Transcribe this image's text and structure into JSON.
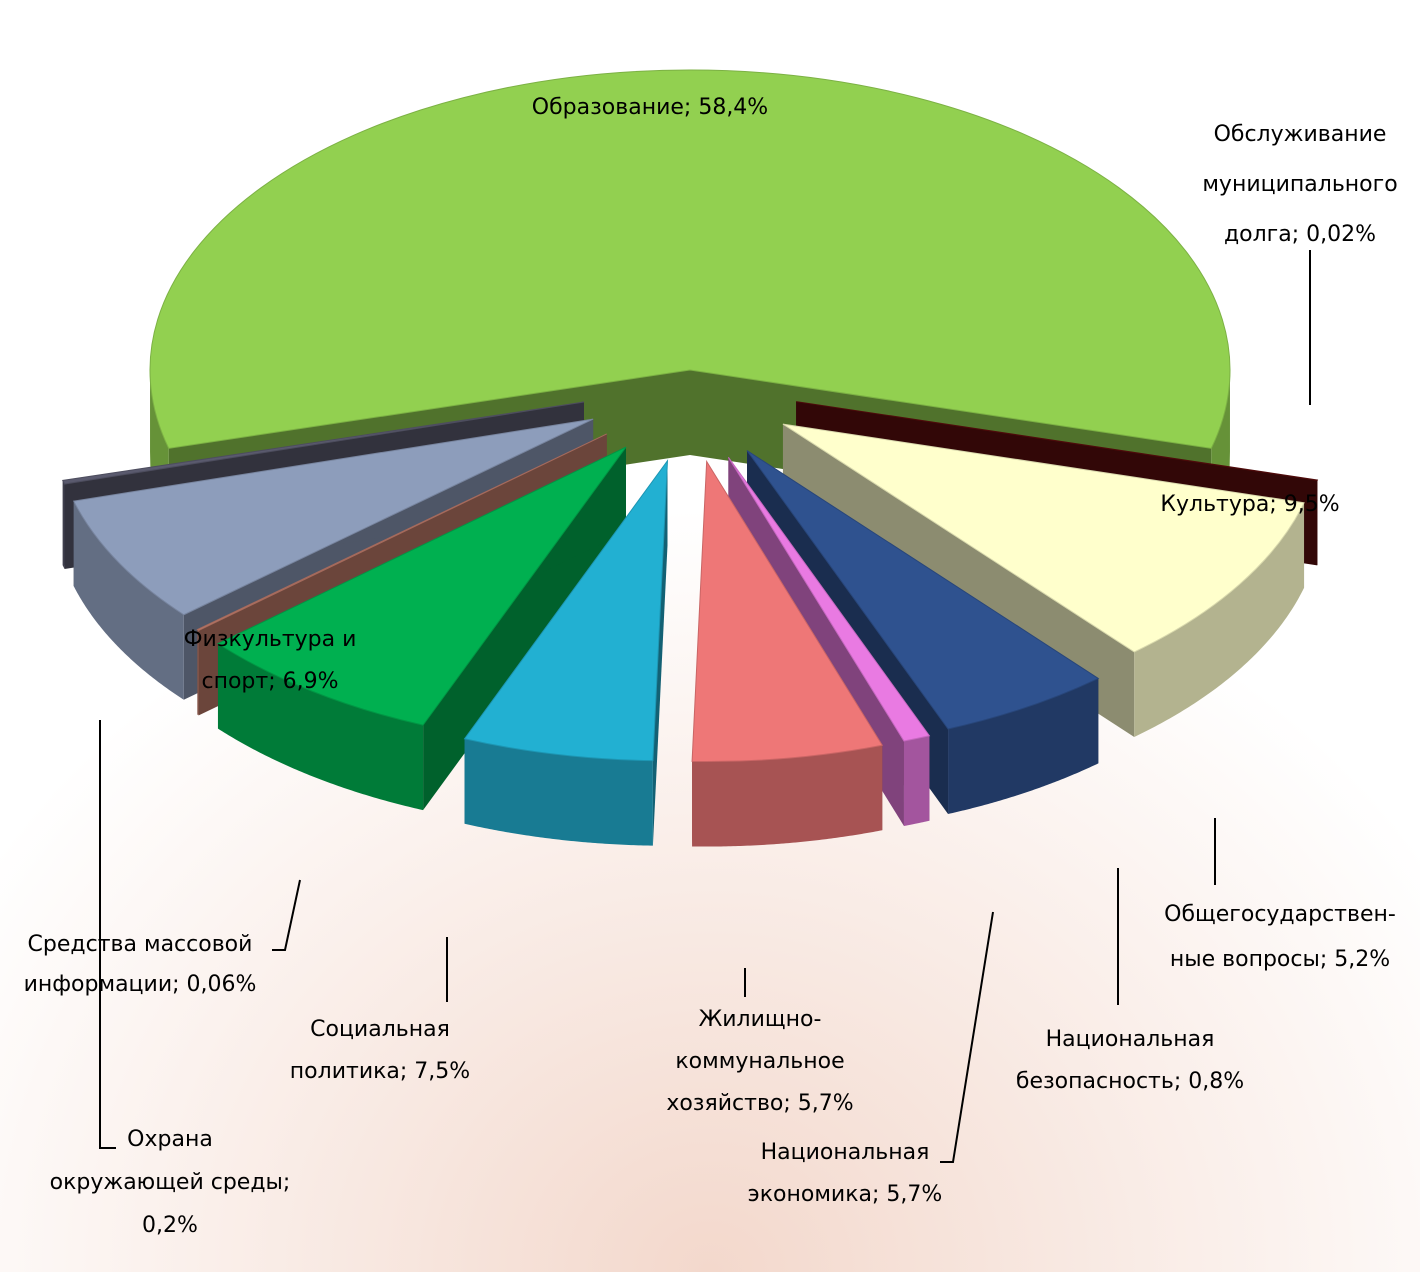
{
  "chart_data": {
    "type": "pie",
    "labels": [
      [
        "Образование; 58,4%"
      ],
      [
        "Обслуживание",
        "муниципального",
        "долга; 0,02%"
      ],
      [
        "Культура; 9,5%"
      ],
      [
        "Общегосударствен-",
        "ные вопросы; 5,2%"
      ],
      [
        "Национальная",
        "безопасность; 0,8%"
      ],
      [
        "Национальная",
        "экономика; 5,7%"
      ],
      [
        "Жилищно-",
        "коммунальное",
        "хозяйство; 5,7%"
      ],
      [
        "Социальная",
        "политика; 7,5%"
      ],
      [
        "Средства массовой",
        "информации; 0,06%"
      ],
      [
        "Физкультура и",
        "спорт; 6,9%"
      ],
      [
        "Охрана",
        "окружающей среды;",
        "0,2%"
      ]
    ],
    "values": [
      58.4,
      0.02,
      9.5,
      5.2,
      0.8,
      5.7,
      5.7,
      7.5,
      0.06,
      6.9,
      0.2
    ],
    "colors": [
      "#92d050",
      "#5a0c0c",
      "#ffffcc",
      "#2f528f",
      "#e97ae2",
      "#ee7777",
      "#22b0d2",
      "#00b050",
      "#c27d6c",
      "#8d9dbb",
      "#5a5a6e"
    ]
  }
}
